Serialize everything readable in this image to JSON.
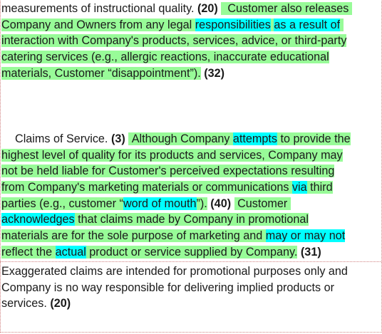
{
  "para1": {
    "l1_text": "measurements of instructional quality.",
    "l1_score": "(20)",
    "l1_green": "Customer also releases",
    "l2_green_a": "Company and Owners from any legal",
    "l2_cyan_a": "responsibilities",
    "l2_cyan_b": "as a result of",
    "l3_green": "interaction with Company's products, services, advice, or third-party",
    "l4_green": "catering services (e.g., allergic reactions, inaccurate educational",
    "l5_green": "materials, Customer “disappointment”).",
    "l5_score": "(32)"
  },
  "para2": {
    "l1_text": "Claims of Service.",
    "l1_score": "(3)",
    "l1_green_a": "Although Company",
    "l1_cyan": "attempts",
    "l1_green_b": "to provide the",
    "l2_green": "highest level of quality for its products and services, Company may",
    "l3_green": "not be held liable for Customer's perceived expectations resulting",
    "l4_green_a": "from Company's marketing materials or communications",
    "l4_cyan": "via",
    "l4_green_b": "third",
    "l5_green_a": "parties (e.g., customer “",
    "l5_cyan": "word of mouth",
    "l5_green_b": "”).",
    "l5_score": "(40)",
    "l5_green_c": "Customer",
    "l6_cyan": "acknowledges",
    "l6_green": "that claims made by Company in promotional",
    "l7_green_a": "materials are for the sole purpose of marketing and",
    "l7_cyan": "may or may not",
    "l8_green_a": "reflect the",
    "l8_cyan": "actual",
    "l8_green_b": "product or service supplied by Company.",
    "l8_score": "(31)"
  },
  "para3": {
    "l1_text": "Exaggerated claims are intended for promotional purposes only and",
    "l2_text": "Company is no way responsible for delivering implied products or",
    "l3_text": "services.",
    "l3_score": "(20)"
  },
  "colors": {
    "highlight_green": "#98fb98",
    "highlight_cyan": "#00ffff",
    "region_border": "#d08080"
  }
}
